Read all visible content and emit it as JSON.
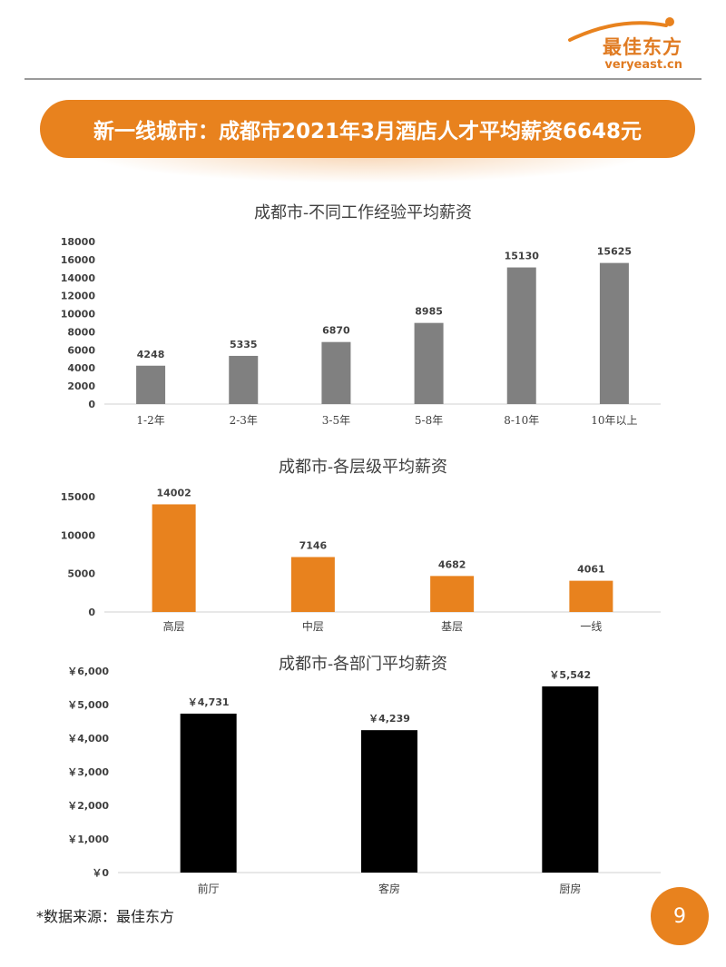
{
  "header": {
    "logo_text": "最佳东方",
    "logo_url": "veryeast.cn",
    "banner_title": "新一线城市：成都市2021年3月酒店人才平均薪资6648元"
  },
  "footer": {
    "source_note": "*数据来源：最佳东方",
    "page_number": "9"
  },
  "colors": {
    "accent": "#e8821e",
    "experience_bars": "#808080",
    "level_bars": "#e8821e",
    "department_bars": "#000000"
  },
  "chart_data": [
    {
      "type": "bar",
      "title": "成都市-不同工作经验平均薪资",
      "categories": [
        "1-2年",
        "2-3年",
        "3-5年",
        "5-8年",
        "8-10年",
        "10年以上"
      ],
      "values": [
        4248,
        5335,
        6870,
        8985,
        15130,
        15625
      ],
      "data_labels": [
        "4248",
        "5335",
        "6870",
        "8985",
        "15130",
        "15625"
      ],
      "ylim": [
        0,
        18000
      ],
      "yticks": [
        0,
        2000,
        4000,
        6000,
        8000,
        10000,
        12000,
        14000,
        16000,
        18000
      ],
      "ytick_labels": [
        "0",
        "2000",
        "4000",
        "6000",
        "8000",
        "10000",
        "12000",
        "14000",
        "16000",
        "18000"
      ],
      "xlabel": "",
      "ylabel": "",
      "grid": false,
      "color": "#808080"
    },
    {
      "type": "bar",
      "title": "成都市-各层级平均薪资",
      "categories": [
        "高层",
        "中层",
        "基层",
        "一线"
      ],
      "values": [
        14002,
        7146,
        4682,
        4061
      ],
      "data_labels": [
        "14002",
        "7146",
        "4682",
        "4061"
      ],
      "ylim": [
        0,
        15000
      ],
      "yticks": [
        0,
        5000,
        10000,
        15000
      ],
      "ytick_labels": [
        "0",
        "5000",
        "10000",
        "15000"
      ],
      "xlabel": "",
      "ylabel": "",
      "grid": false,
      "color": "#e8821e"
    },
    {
      "type": "bar",
      "title": "成都市-各部门平均薪资",
      "categories": [
        "前厅",
        "客房",
        "厨房"
      ],
      "values": [
        4731,
        4239,
        5542
      ],
      "data_labels": [
        "￥4,731",
        "￥4,239",
        "￥5,542"
      ],
      "ylim": [
        0,
        6000
      ],
      "yticks": [
        0,
        1000,
        2000,
        3000,
        4000,
        5000,
        6000
      ],
      "ytick_labels": [
        "￥0",
        "￥1,000",
        "￥2,000",
        "￥3,000",
        "￥4,000",
        "￥5,000",
        "￥6,000"
      ],
      "xlabel": "",
      "ylabel": "",
      "grid": false,
      "color": "#000000"
    }
  ]
}
